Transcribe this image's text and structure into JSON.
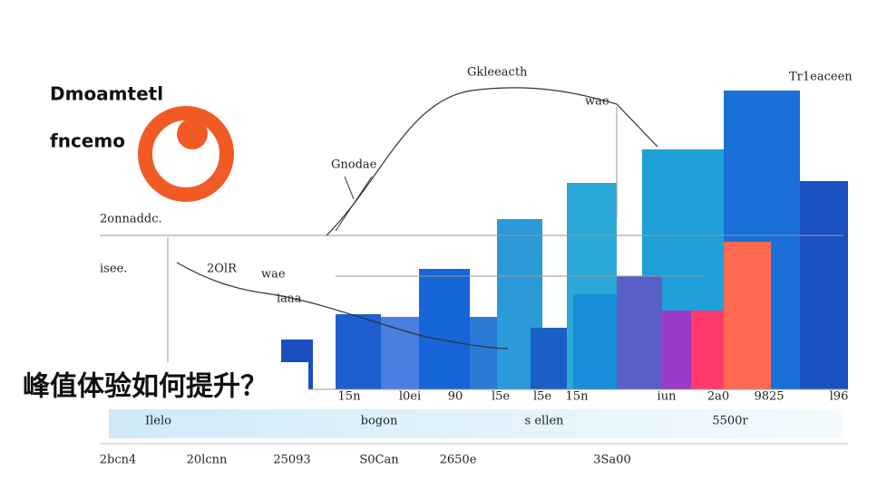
{
  "brand": {
    "line1": "Dmoamtetl",
    "line2": "fncemo"
  },
  "caption": "峰值体验如何提升？",
  "annotations": [
    "Gkleeacth",
    "Tr1eaceen",
    "wae",
    "Gnodae",
    "2onnaddc.",
    "isee.",
    "2OlR",
    "wae",
    "iaaa"
  ],
  "axis_row1": [
    "15n",
    "l0ei",
    "90",
    "l5e",
    "l5e",
    "15n",
    "iun",
    "2a0",
    "9825",
    "l96"
  ],
  "axis_row2": [
    "Ilelo",
    "bogon",
    "s ellen",
    "5500r"
  ],
  "axis_row3": [
    "2bcn4",
    "20lcnn",
    "25093",
    "S0Can",
    "2650e",
    "3Sa00"
  ]
}
